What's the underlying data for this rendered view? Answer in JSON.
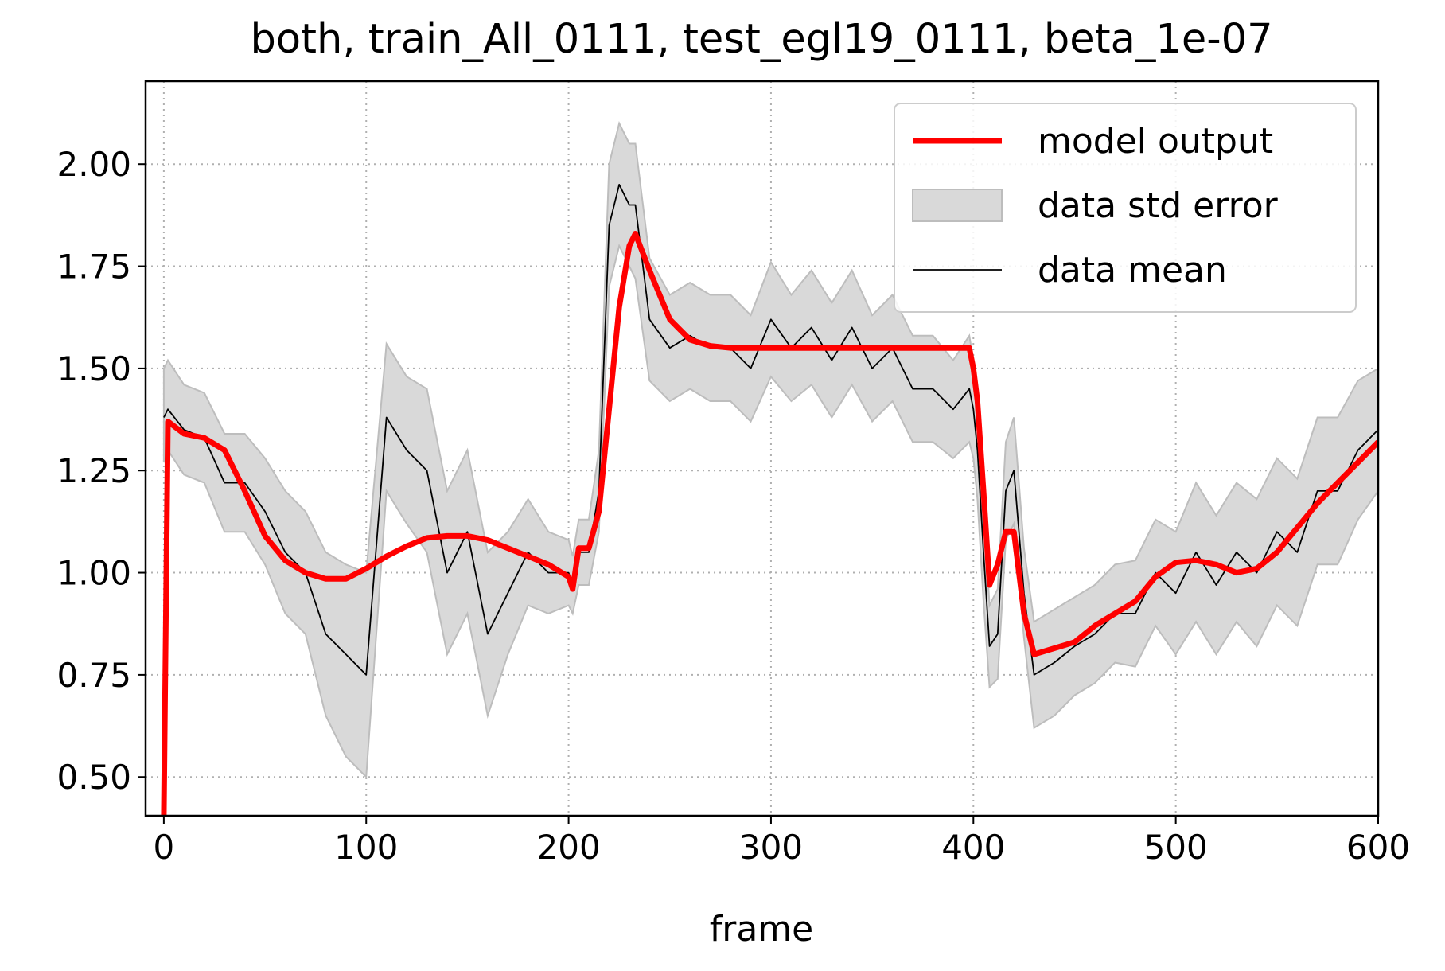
{
  "chart_data": {
    "type": "line",
    "title": "both, train_All_0111, test_egl19_0111, beta_1e-07",
    "x_label": "frame",
    "x": [
      0,
      2,
      10,
      20,
      30,
      40,
      50,
      60,
      70,
      80,
      90,
      100,
      110,
      120,
      130,
      140,
      150,
      160,
      170,
      180,
      190,
      200,
      202,
      205,
      210,
      215,
      220,
      225,
      230,
      233,
      240,
      250,
      260,
      270,
      280,
      290,
      300,
      310,
      320,
      330,
      340,
      350,
      360,
      370,
      380,
      390,
      398,
      400,
      402,
      405,
      408,
      412,
      416,
      420,
      425,
      430,
      440,
      450,
      460,
      470,
      480,
      490,
      500,
      510,
      520,
      530,
      540,
      550,
      560,
      570,
      580,
      590,
      600
    ],
    "series": [
      {
        "name": "model output",
        "color": "#ff0000",
        "values": [
          0.4,
          1.37,
          1.34,
          1.33,
          1.3,
          1.2,
          1.09,
          1.03,
          1.0,
          0.985,
          0.985,
          1.01,
          1.04,
          1.065,
          1.085,
          1.09,
          1.09,
          1.08,
          1.06,
          1.04,
          1.02,
          0.99,
          0.96,
          1.06,
          1.06,
          1.15,
          1.4,
          1.65,
          1.8,
          1.83,
          1.74,
          1.62,
          1.57,
          1.555,
          1.55,
          1.55,
          1.55,
          1.55,
          1.55,
          1.55,
          1.55,
          1.55,
          1.55,
          1.55,
          1.55,
          1.55,
          1.55,
          1.5,
          1.42,
          1.2,
          0.97,
          1.02,
          1.1,
          1.1,
          0.9,
          0.8,
          0.815,
          0.83,
          0.87,
          0.9,
          0.93,
          0.99,
          1.025,
          1.03,
          1.02,
          1.0,
          1.01,
          1.05,
          1.11,
          1.17,
          1.22,
          1.27,
          1.32
        ]
      },
      {
        "name": "data std error",
        "color": "#d9d9d9",
        "lower": [
          1.27,
          1.3,
          1.24,
          1.22,
          1.1,
          1.1,
          1.02,
          0.9,
          0.85,
          0.65,
          0.55,
          0.5,
          1.2,
          1.12,
          1.05,
          0.8,
          0.9,
          0.65,
          0.8,
          0.92,
          0.9,
          0.92,
          0.9,
          0.97,
          0.97,
          1.1,
          1.7,
          1.8,
          1.75,
          1.72,
          1.47,
          1.42,
          1.45,
          1.42,
          1.42,
          1.37,
          1.48,
          1.42,
          1.46,
          1.38,
          1.46,
          1.37,
          1.42,
          1.32,
          1.32,
          1.28,
          1.32,
          1.28,
          1.18,
          0.93,
          0.72,
          0.74,
          1.08,
          1.12,
          0.84,
          0.62,
          0.65,
          0.7,
          0.73,
          0.78,
          0.77,
          0.87,
          0.8,
          0.88,
          0.8,
          0.88,
          0.82,
          0.92,
          0.87,
          1.02,
          1.02,
          1.13,
          1.2
        ],
        "upper": [
          1.5,
          1.52,
          1.46,
          1.44,
          1.34,
          1.34,
          1.28,
          1.2,
          1.15,
          1.05,
          1.02,
          1.0,
          1.56,
          1.48,
          1.45,
          1.2,
          1.3,
          1.05,
          1.1,
          1.18,
          1.1,
          1.08,
          1.04,
          1.13,
          1.13,
          1.3,
          2.0,
          2.1,
          2.05,
          2.05,
          1.77,
          1.68,
          1.71,
          1.68,
          1.68,
          1.63,
          1.76,
          1.68,
          1.74,
          1.66,
          1.74,
          1.63,
          1.68,
          1.58,
          1.58,
          1.52,
          1.58,
          1.52,
          1.42,
          1.17,
          0.92,
          0.96,
          1.32,
          1.38,
          1.06,
          0.88,
          0.91,
          0.94,
          0.97,
          1.02,
          1.03,
          1.13,
          1.1,
          1.22,
          1.14,
          1.22,
          1.18,
          1.28,
          1.23,
          1.38,
          1.38,
          1.47,
          1.5
        ]
      },
      {
        "name": "data mean",
        "color": "#000000",
        "values": [
          1.38,
          1.4,
          1.35,
          1.33,
          1.22,
          1.22,
          1.15,
          1.05,
          1.0,
          0.85,
          0.8,
          0.75,
          1.38,
          1.3,
          1.25,
          1.0,
          1.1,
          0.85,
          0.95,
          1.05,
          1.0,
          1.0,
          0.97,
          1.05,
          1.05,
          1.2,
          1.85,
          1.95,
          1.9,
          1.9,
          1.62,
          1.55,
          1.58,
          1.55,
          1.55,
          1.5,
          1.62,
          1.55,
          1.6,
          1.52,
          1.6,
          1.5,
          1.55,
          1.45,
          1.45,
          1.4,
          1.45,
          1.4,
          1.3,
          1.05,
          0.82,
          0.85,
          1.2,
          1.25,
          0.95,
          0.75,
          0.78,
          0.82,
          0.85,
          0.9,
          0.9,
          1.0,
          0.95,
          1.05,
          0.97,
          1.05,
          1.0,
          1.1,
          1.05,
          1.2,
          1.2,
          1.3,
          1.35
        ]
      }
    ],
    "xlim": [
      -9,
      600
    ],
    "ylim": [
      0.405,
      2.203
    ],
    "xticks": [
      0,
      100,
      200,
      300,
      400,
      500,
      600
    ],
    "yticks": [
      {
        "value": 0.5,
        "label": "0.50"
      },
      {
        "value": 0.75,
        "label": "0.75"
      },
      {
        "value": 1.0,
        "label": "1.00"
      },
      {
        "value": 1.25,
        "label": "1.25"
      },
      {
        "value": 1.5,
        "label": "1.50"
      },
      {
        "value": 1.75,
        "label": "1.75"
      },
      {
        "value": 2.0,
        "label": "2.00"
      }
    ],
    "grid": true,
    "legend": "upper right"
  }
}
